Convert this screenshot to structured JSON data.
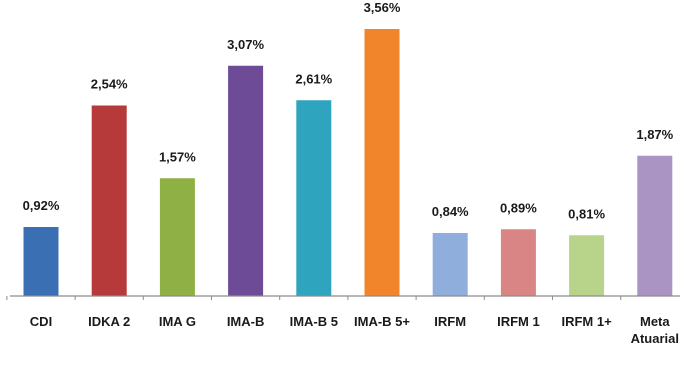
{
  "chart_data": {
    "type": "bar",
    "categories": [
      "CDI",
      "IDKA 2",
      "IMA G",
      "IMA-B",
      "IMA-B 5",
      "IMA-B 5+",
      "IRFM",
      "IRFM 1",
      "IRFM 1+",
      "Meta Atuarial"
    ],
    "category_lines": [
      [
        "CDI"
      ],
      [
        "IDKA 2"
      ],
      [
        "IMA G"
      ],
      [
        "IMA-B"
      ],
      [
        "IMA-B 5"
      ],
      [
        "IMA-B 5+"
      ],
      [
        "IRFM"
      ],
      [
        "IRFM 1"
      ],
      [
        "IRFM 1+"
      ],
      [
        "Meta",
        "Atuarial"
      ]
    ],
    "values": [
      0.92,
      2.54,
      1.57,
      3.07,
      2.61,
      3.56,
      0.84,
      0.89,
      0.81,
      1.87
    ],
    "value_labels": [
      "0,92%",
      "2,54%",
      "1,57%",
      "3,07%",
      "2,61%",
      "3,56%",
      "0,84%",
      "0,89%",
      "0,81%",
      "1,87%"
    ],
    "colors": [
      "#3a6fb4",
      "#b53a39",
      "#8fb045",
      "#6e4b97",
      "#2fa4bf",
      "#f0852c",
      "#8faedb",
      "#d98585",
      "#b8d48a",
      "#a994c4"
    ],
    "ylim": [
      0,
      3.56
    ],
    "grid": false,
    "legend": "none",
    "title": "",
    "xlabel": "",
    "ylabel": ""
  }
}
